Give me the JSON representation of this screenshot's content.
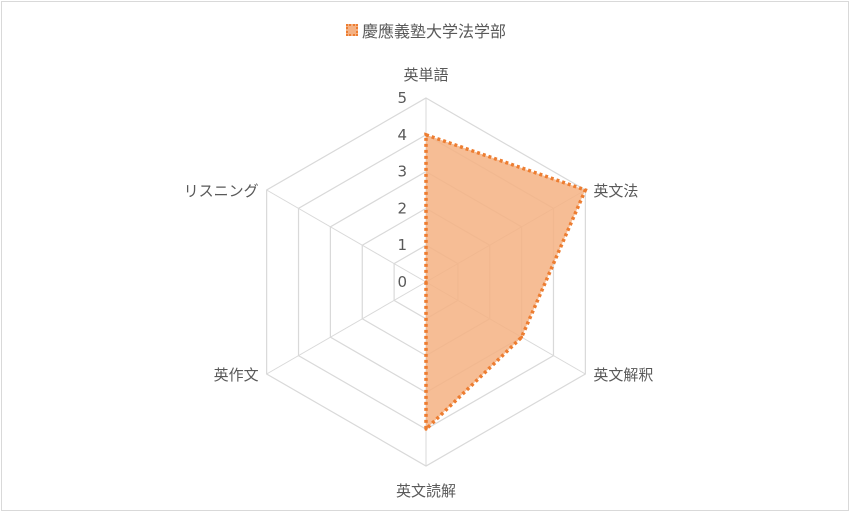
{
  "chart_data": {
    "type": "radar",
    "categories": [
      "英単語",
      "英文法",
      "英文解釈",
      "英文読解",
      "英作文",
      "リスニング"
    ],
    "series": [
      {
        "name": "慶應義塾大学法学部",
        "values": [
          4,
          5,
          3,
          4,
          0,
          0
        ]
      }
    ],
    "rlim": [
      0,
      5
    ],
    "ticks": [
      0,
      1,
      2,
      3,
      4,
      5
    ],
    "tick_labels": [
      "0",
      "1",
      "2",
      "3",
      "4",
      "5"
    ],
    "legend_position": "top",
    "colors": {
      "fill": "#f4b183",
      "line": "#ed7d31",
      "grid": "#d9d9d9",
      "text": "#595959"
    }
  }
}
